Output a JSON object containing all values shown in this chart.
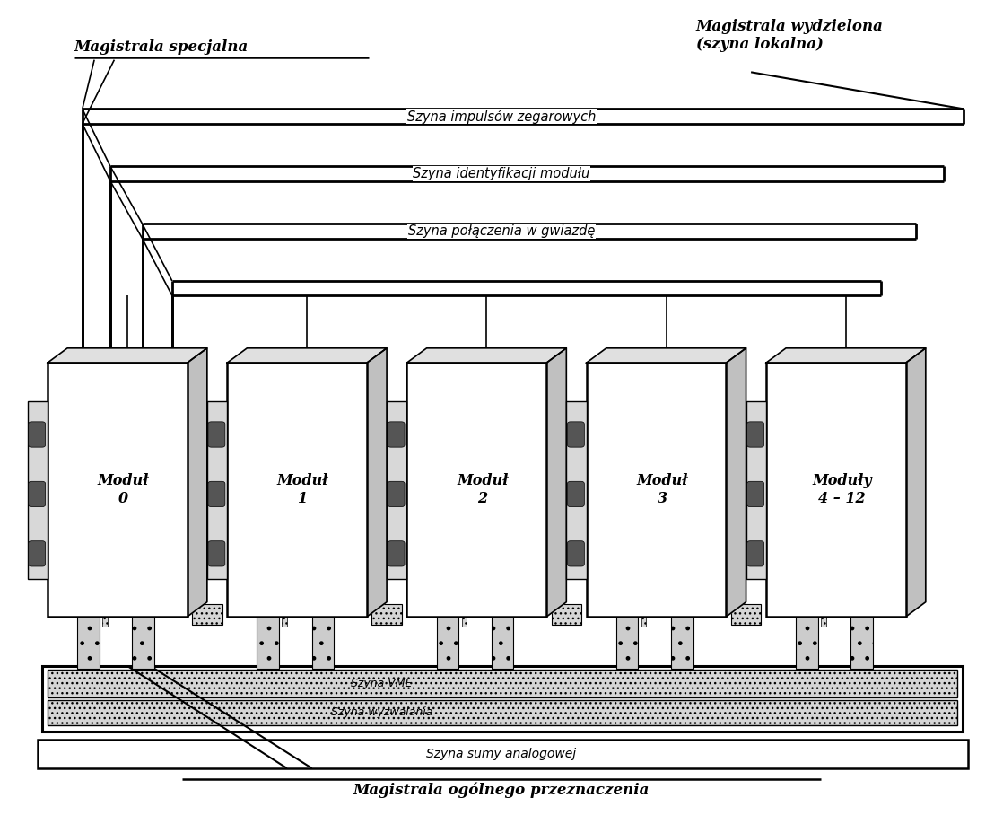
{
  "bg_color": "#ffffff",
  "fig_width": 11.18,
  "fig_height": 9.18,
  "labels": {
    "magistrala_specjalna": "Magistrala specjalna",
    "magistrala_wydzielona": "Magistrala wydzielona\n(szyna lokalna)",
    "szyna_zegarowych": "Szyna impulsów zegarowych",
    "szyna_identyfikacji": "Szyna identyfikacji modułu",
    "szyna_polaczenia": "Szyna połączenia w gwiazdę",
    "szyna_vme": "Szyna VME",
    "szyna_wyzwalania": "Szyna wyzwalania",
    "szyna_sumy": "Szyna sumy analogowej",
    "magistrala_ogolnego": "Magistrala ogólnego przeznaczenia"
  },
  "module_labels": [
    "Moduł\n0",
    "Moduł\n1",
    "Moduł\n2",
    "Moduł\n3",
    "Moduły\n4 – 12"
  ],
  "module_centers": [
    0.115,
    0.295,
    0.475,
    0.655,
    0.835
  ]
}
